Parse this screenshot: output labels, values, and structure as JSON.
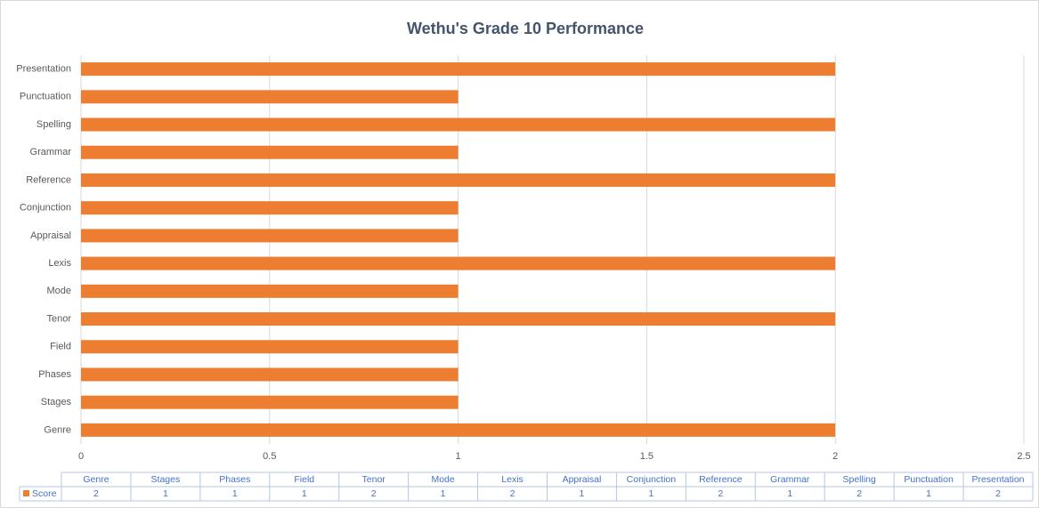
{
  "chart_data": {
    "type": "bar",
    "orientation": "horizontal",
    "title": "Wethu's Grade 10 Performance",
    "categories": [
      "Genre",
      "Stages",
      "Phases",
      "Field",
      "Tenor",
      "Mode",
      "Lexis",
      "Appraisal",
      "Conjunction",
      "Reference",
      "Grammar",
      "Spelling",
      "Punctuation",
      "Presentation"
    ],
    "series": [
      {
        "name": "Score",
        "color": "#ed7d31",
        "values": [
          2,
          1,
          1,
          1,
          2,
          1,
          2,
          1,
          1,
          2,
          1,
          2,
          1,
          2
        ]
      }
    ],
    "xlim": [
      0,
      2.5
    ],
    "xticks": [
      0,
      0.5,
      1,
      1.5,
      2,
      2.5
    ],
    "grid": true,
    "data_table": true
  }
}
